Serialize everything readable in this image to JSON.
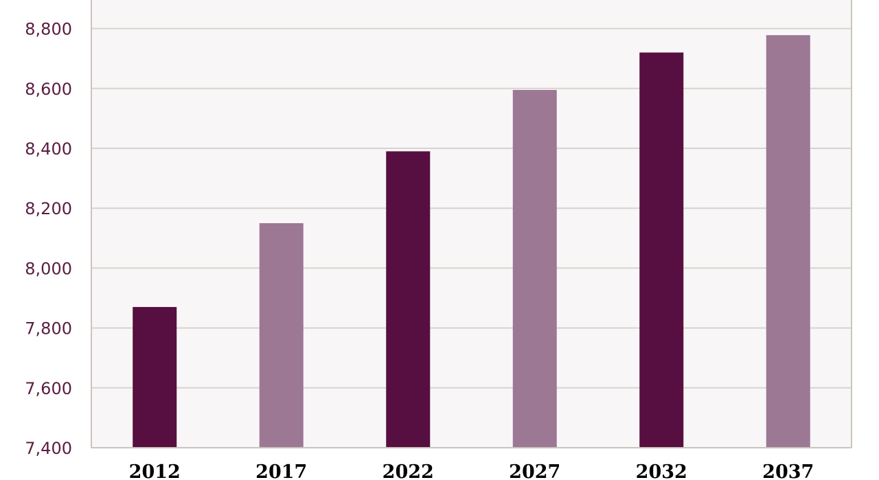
{
  "chart_data": {
    "type": "bar",
    "categories": [
      "2012",
      "2017",
      "2022",
      "2027",
      "2032",
      "2037"
    ],
    "values": [
      7870,
      8150,
      8390,
      8595,
      8720,
      8778
    ],
    "ylim": [
      7400,
      8900
    ],
    "yticks": [
      7400,
      7600,
      7800,
      8000,
      8200,
      8400,
      8600,
      8800
    ],
    "ytick_labels": [
      "7,400",
      "7,600",
      "7,800",
      "8,000",
      "8,200",
      "8,400",
      "8,600",
      "8,800"
    ],
    "grid": true,
    "title": "",
    "xlabel": "",
    "ylabel": "",
    "colors": {
      "bar_dark": "#560f40",
      "bar_light": "#9c7895",
      "plot_background": "#f8f6f7",
      "gridline": "#d8d4cc",
      "axis_line": "#c9c5bc",
      "ytick_text": "#5a1d42",
      "xtick_text": "#000000"
    },
    "bar_color_pattern": [
      "bar_dark",
      "bar_light",
      "bar_dark",
      "bar_light",
      "bar_dark",
      "bar_light"
    ]
  }
}
